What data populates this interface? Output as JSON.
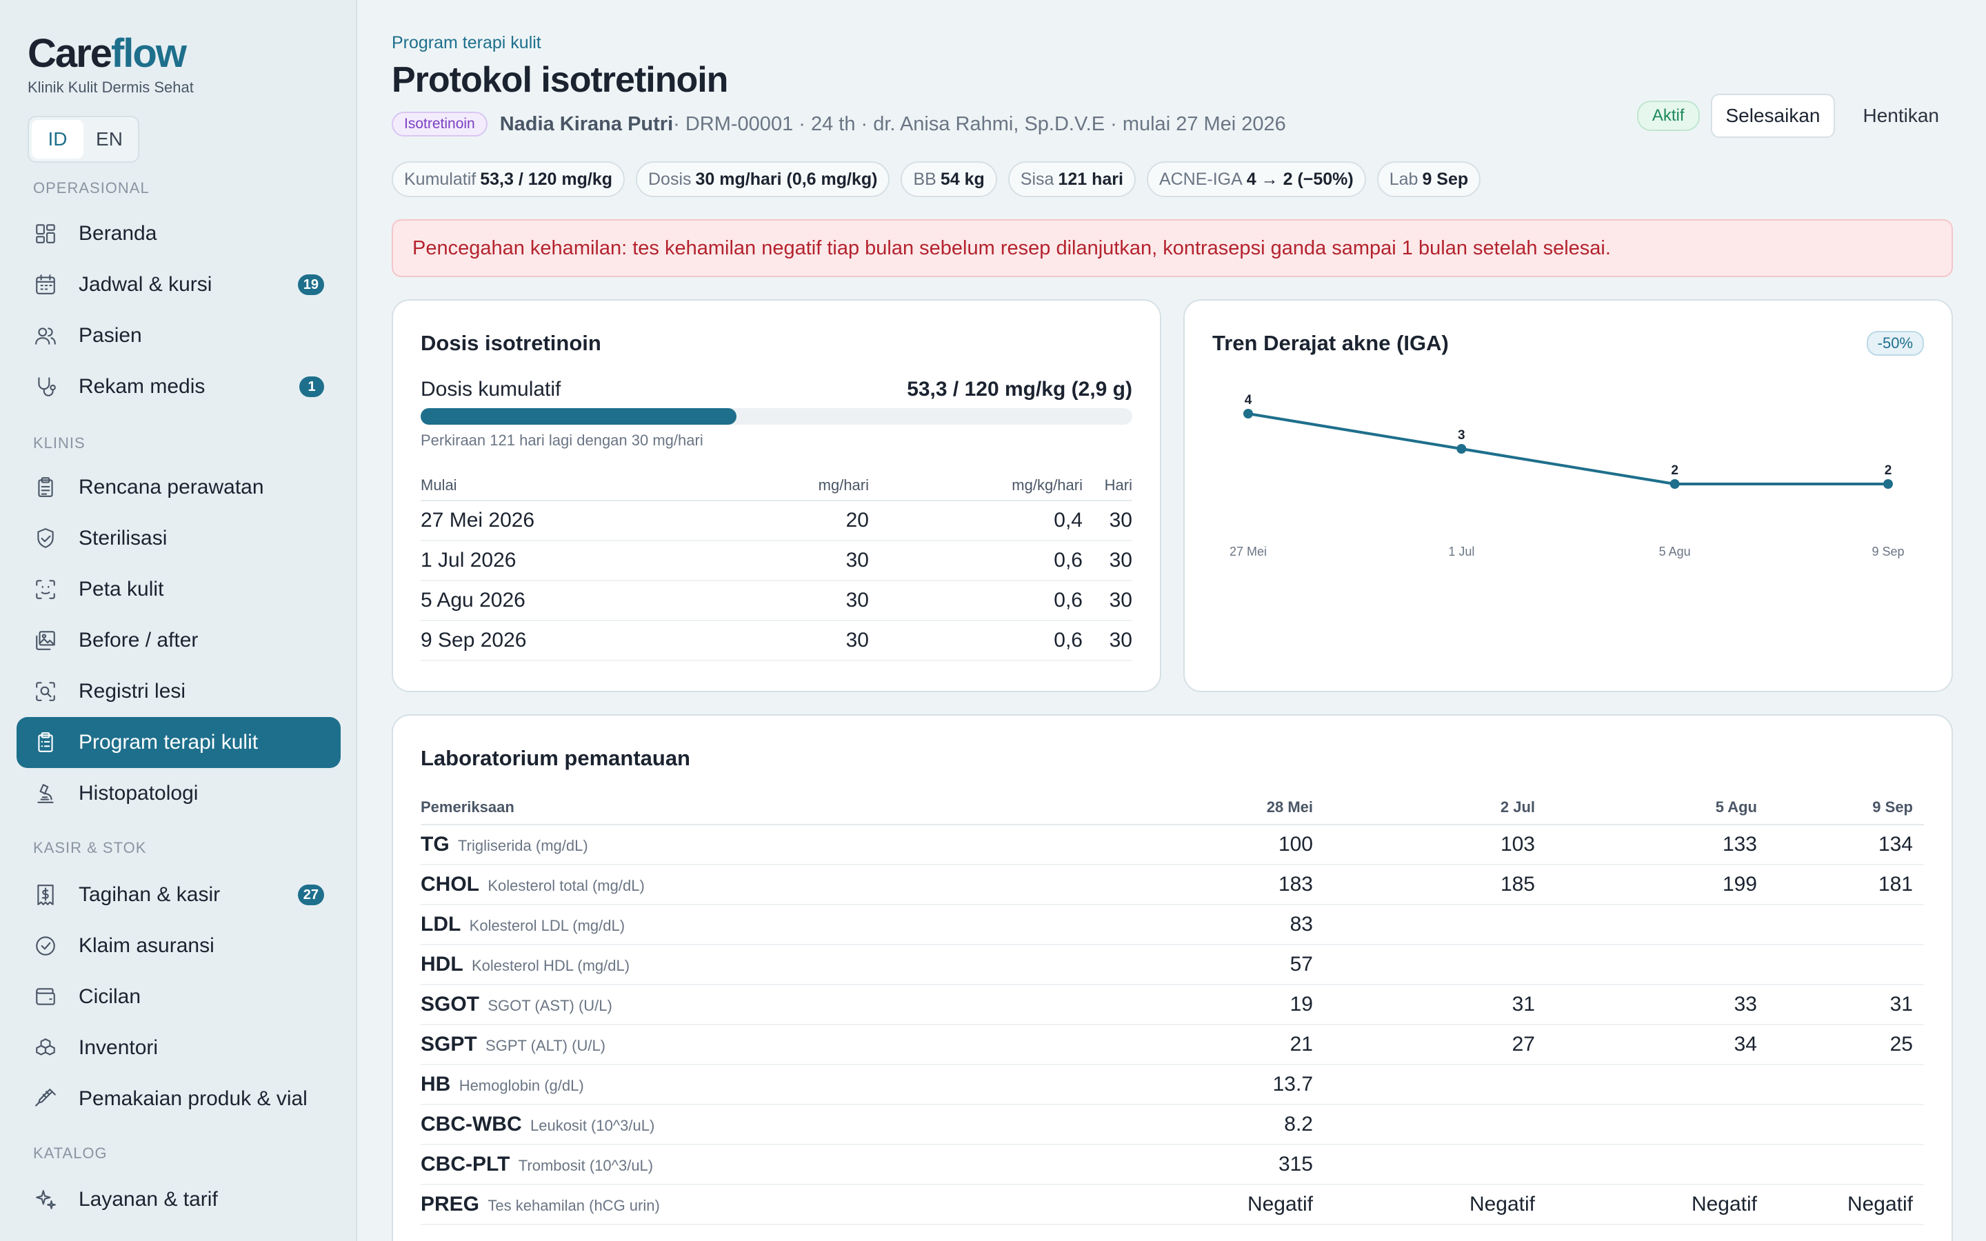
{
  "brand": {
    "name_a": "Care",
    "name_b": "flow",
    "subtitle": "Klinik Kulit Dermis Sehat"
  },
  "language": {
    "options": [
      "ID",
      "EN"
    ],
    "active": "ID"
  },
  "colors": {
    "accent": "#1e6f8c",
    "alert": "#b3232e",
    "success": "#1d8a5a"
  },
  "sidebar": {
    "sections": [
      {
        "label": "OPERASIONAL",
        "items": [
          {
            "label": "Beranda",
            "icon": "dashboard-icon"
          },
          {
            "label": "Jadwal & kursi",
            "icon": "calendar-icon",
            "badge": "19"
          },
          {
            "label": "Pasien",
            "icon": "users-icon"
          },
          {
            "label": "Rekam medis",
            "icon": "stethoscope-icon",
            "badge": "1"
          }
        ]
      },
      {
        "label": "KLINIS",
        "items": [
          {
            "label": "Rencana perawatan",
            "icon": "clipboard-icon"
          },
          {
            "label": "Sterilisasi",
            "icon": "shield-icon"
          },
          {
            "label": "Peta kulit",
            "icon": "face-scan-icon"
          },
          {
            "label": "Before / after",
            "icon": "images-icon"
          },
          {
            "label": "Registri lesi",
            "icon": "scan-search-icon"
          },
          {
            "label": "Program terapi kulit",
            "icon": "clipboard-list-icon",
            "active": true
          },
          {
            "label": "Histopatologi",
            "icon": "microscope-icon"
          }
        ]
      },
      {
        "label": "KASIR & STOK",
        "items": [
          {
            "label": "Tagihan & kasir",
            "icon": "receipt-icon",
            "badge": "27"
          },
          {
            "label": "Klaim asuransi",
            "icon": "check-circle-icon"
          },
          {
            "label": "Cicilan",
            "icon": "wallet-icon"
          },
          {
            "label": "Inventori",
            "icon": "boxes-icon"
          },
          {
            "label": "Pemakaian produk & vial",
            "icon": "syringe-icon"
          }
        ]
      },
      {
        "label": "KATALOG",
        "items": [
          {
            "label": "Layanan & tarif",
            "icon": "sparkles-icon"
          }
        ]
      }
    ]
  },
  "header": {
    "breadcrumb": "Program terapi kulit",
    "title": "Protokol isotretinoin",
    "tag": "Isotretinoin",
    "patient_name": "Nadia Kirana Putri",
    "patient_meta": " · DRM-00001 · 24 th · dr. Anisa Rahmi, Sp.D.V.E · mulai 27 Mei 2026",
    "status": "Aktif",
    "complete_label": "Selesaikan",
    "stop_label": "Hentikan"
  },
  "pills": [
    {
      "label": "Kumulatif",
      "value": "53,3 / 120 mg/kg"
    },
    {
      "label": "Dosis",
      "value": "30 mg/hari (0,6 mg/kg)"
    },
    {
      "label": "BB",
      "value": "54 kg"
    },
    {
      "label": "Sisa",
      "value": "121 hari"
    },
    {
      "label": "ACNE-IGA",
      "value": "4 → 2 (−50%)"
    },
    {
      "label": "Lab",
      "value": "9 Sep"
    }
  ],
  "alert": "Pencegahan kehamilan: tes kehamilan negatif tiap bulan sebelum resep dilanjutkan, kontrasepsi ganda sampai 1 bulan setelah selesai.",
  "dose": {
    "title": "Dosis isotretinoin",
    "cumulative_label": "Dosis kumulatif",
    "cumulative_value": "53,3 / 120 mg/kg (2,9 g)",
    "progress_fraction": 0.444,
    "hint": "Perkiraan 121 hari lagi dengan 30 mg/hari",
    "columns": [
      "Mulai",
      "mg/hari",
      "mg/kg/hari",
      "Hari"
    ],
    "rows": [
      [
        "27 Mei 2026",
        "20",
        "0,4",
        "30"
      ],
      [
        "1 Jul 2026",
        "30",
        "0,6",
        "30"
      ],
      [
        "5 Agu 2026",
        "30",
        "0,6",
        "30"
      ],
      [
        "9 Sep 2026",
        "30",
        "0,6",
        "30"
      ]
    ]
  },
  "trend": {
    "title": "Tren Derajat akne (IGA)",
    "badge": "-50%"
  },
  "chart_data": {
    "type": "line",
    "title": "Tren Derajat akne (IGA)",
    "categories": [
      "27 Mei",
      "1 Jul",
      "5 Agu",
      "9 Sep"
    ],
    "values": [
      4,
      3,
      2,
      2
    ],
    "ylim": [
      0,
      4
    ],
    "grid": false,
    "color": "#1e6f8c"
  },
  "labs": {
    "title": "Laboratorium pemantauan",
    "columns": [
      "Pemeriksaan",
      "28 Mei",
      "2 Jul",
      "5 Agu",
      "9 Sep"
    ],
    "rows": [
      {
        "code": "TG",
        "name": "Trigliserida (mg/dL)",
        "values": [
          "100",
          "103",
          "133",
          "134"
        ]
      },
      {
        "code": "CHOL",
        "name": "Kolesterol total (mg/dL)",
        "values": [
          "183",
          "185",
          "199",
          "181"
        ]
      },
      {
        "code": "LDL",
        "name": "Kolesterol LDL (mg/dL)",
        "values": [
          "83",
          "",
          "",
          ""
        ]
      },
      {
        "code": "HDL",
        "name": "Kolesterol HDL (mg/dL)",
        "values": [
          "57",
          "",
          "",
          ""
        ]
      },
      {
        "code": "SGOT",
        "name": "SGOT (AST) (U/L)",
        "values": [
          "19",
          "31",
          "33",
          "31"
        ]
      },
      {
        "code": "SGPT",
        "name": "SGPT (ALT) (U/L)",
        "values": [
          "21",
          "27",
          "34",
          "25"
        ]
      },
      {
        "code": "HB",
        "name": "Hemoglobin (g/dL)",
        "values": [
          "13.7",
          "",
          "",
          ""
        ]
      },
      {
        "code": "CBC-WBC",
        "name": "Leukosit (10^3/uL)",
        "values": [
          "8.2",
          "",
          "",
          ""
        ]
      },
      {
        "code": "CBC-PLT",
        "name": "Trombosit (10^3/uL)",
        "values": [
          "315",
          "",
          "",
          ""
        ]
      },
      {
        "code": "PREG",
        "name": "Tes kehamilan (hCG urin)",
        "values": [
          "Negatif",
          "Negatif",
          "Negatif",
          "Negatif"
        ]
      }
    ]
  }
}
